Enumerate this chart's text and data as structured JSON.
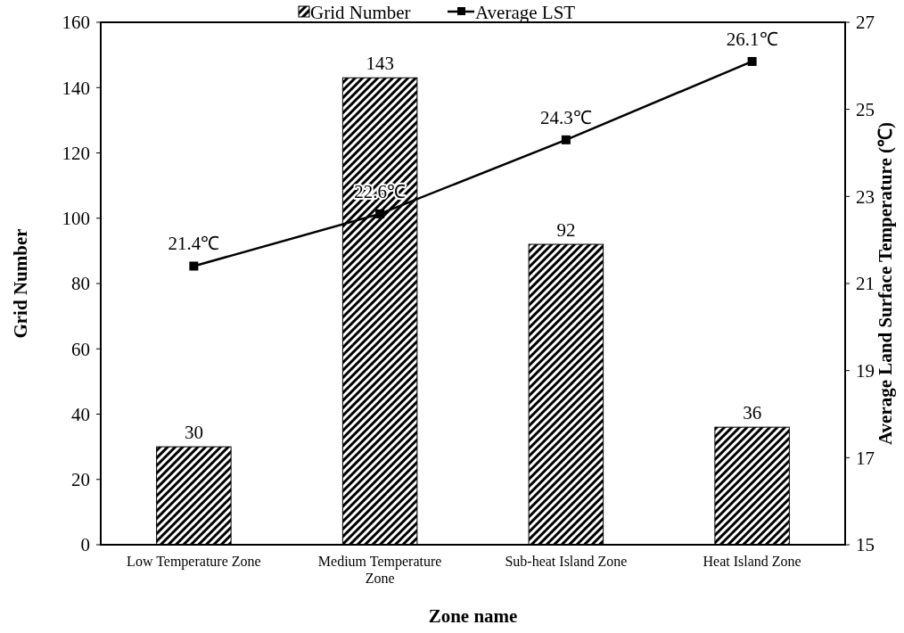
{
  "chart_data": {
    "type": "bar",
    "xlabel": "Zone name",
    "ylabel": "Grid Number",
    "y2label": "Average Land Surface Temperature (℃)",
    "categories": [
      "Low Temperature Zone",
      "Medium Temperature Zone",
      "Sub-heat Island Zone",
      "Heat Island Zone"
    ],
    "series": [
      {
        "name": "Grid Number",
        "color": "#000000",
        "values": [
          30,
          143,
          92,
          36
        ],
        "value_labels": [
          "30",
          "143",
          "92",
          "36"
        ]
      },
      {
        "name": "Average LST",
        "type": "line",
        "axis": "y2",
        "color": "#000000",
        "marker": "square",
        "values": [
          21.4,
          22.6,
          24.3,
          26.1
        ],
        "value_labels": [
          "21.4℃",
          "22.6℃",
          "24.3℃",
          "26.1℃"
        ]
      }
    ],
    "ylim": [
      0,
      160
    ],
    "yticks": [
      0,
      20,
      40,
      60,
      80,
      100,
      120,
      140,
      160
    ],
    "y2lim": [
      15,
      27
    ],
    "y2ticks": [
      15,
      17,
      19,
      21,
      23,
      25,
      27
    ],
    "legend": "top",
    "grid": false
  }
}
